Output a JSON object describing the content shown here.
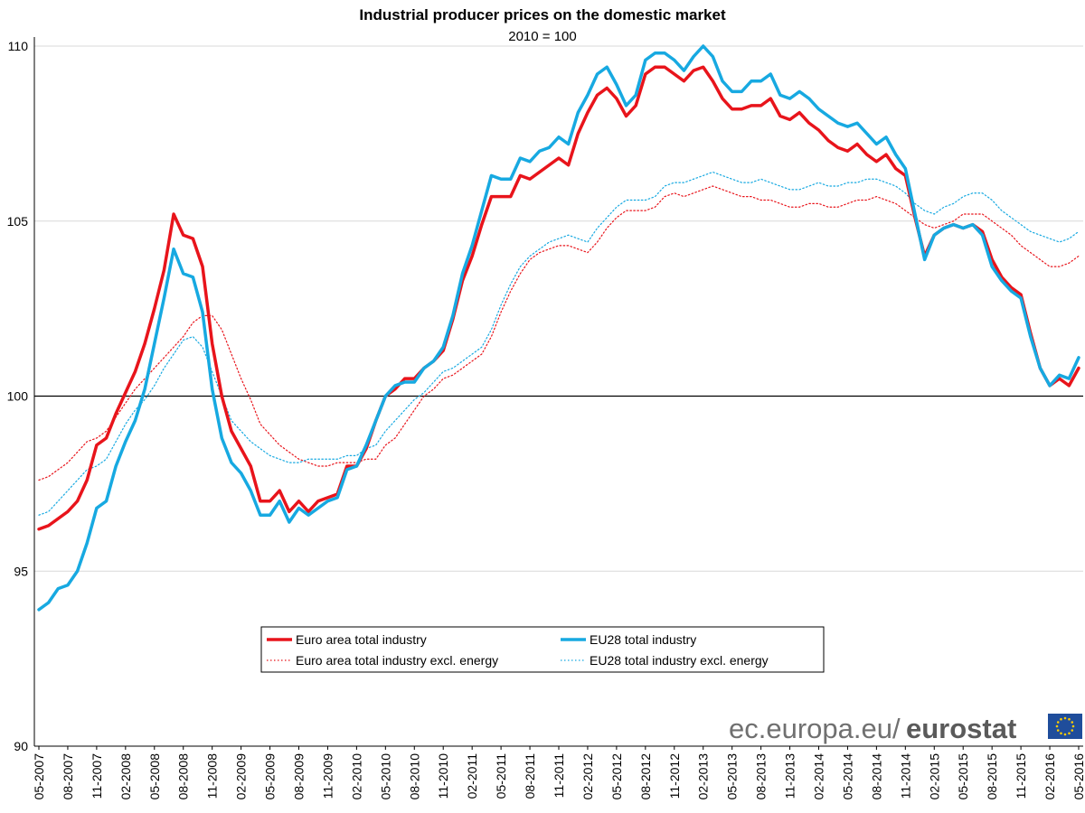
{
  "chart_data": {
    "type": "line",
    "title": "Industrial producer prices on the domestic market",
    "subtitle": "2010 = 100",
    "ylim": [
      90,
      110
    ],
    "yticks": [
      90,
      95,
      100,
      105,
      110
    ],
    "reference_line": 100,
    "grid": "horizontal",
    "legend_position": "bottom-center",
    "x_ticks": [
      "05-2007",
      "08-2007",
      "11-2007",
      "02-2008",
      "05-2008",
      "08-2008",
      "11-2008",
      "02-2009",
      "05-2009",
      "08-2009",
      "11-2009",
      "02-2010",
      "05-2010",
      "08-2010",
      "11-2010",
      "02-2011",
      "05-2011",
      "08-2011",
      "11-2011",
      "02-2012",
      "05-2012",
      "08-2012",
      "11-2012",
      "02-2013",
      "05-2013",
      "08-2013",
      "11-2013",
      "02-2014",
      "05-2014",
      "08-2014",
      "11-2014",
      "02-2015",
      "05-2015",
      "08-2015",
      "11-2015",
      "02-2016",
      "05-2016"
    ],
    "series": [
      {
        "name": "Euro area total industry",
        "color": "#e8141b",
        "style": "solid",
        "values": [
          96.2,
          96.3,
          96.5,
          96.7,
          97.0,
          97.6,
          98.6,
          98.8,
          99.5,
          100.1,
          100.7,
          101.5,
          102.5,
          103.6,
          105.2,
          104.6,
          104.5,
          103.7,
          101.5,
          100.0,
          99.0,
          98.5,
          98.0,
          97.0,
          97.0,
          97.3,
          96.7,
          97.0,
          96.7,
          97.0,
          97.1,
          97.2,
          98.0,
          98.0,
          98.5,
          99.3,
          100.0,
          100.2,
          100.5,
          100.5,
          100.8,
          101.0,
          101.3,
          102.2,
          103.3,
          104.0,
          104.9,
          105.7,
          105.7,
          105.7,
          106.3,
          106.2,
          106.4,
          106.6,
          106.8,
          106.6,
          107.5,
          108.1,
          108.6,
          108.8,
          108.5,
          108.0,
          108.3,
          109.2,
          109.4,
          109.4,
          109.2,
          109.0,
          109.3,
          109.4,
          109.0,
          108.5,
          108.2,
          108.2,
          108.3,
          108.3,
          108.5,
          108.0,
          107.9,
          108.1,
          107.8,
          107.6,
          107.3,
          107.1,
          107.0,
          107.2,
          106.9,
          106.7,
          106.9,
          106.5,
          106.3,
          105.1,
          104.0,
          104.6,
          104.8,
          104.9,
          104.8,
          104.9,
          104.7,
          103.9,
          103.4,
          103.1,
          102.9,
          101.8,
          100.8,
          100.3,
          100.5,
          100.3,
          100.8
        ]
      },
      {
        "name": "EU28 total industry",
        "color": "#17a9e1",
        "style": "solid",
        "values": [
          93.9,
          94.1,
          94.5,
          94.6,
          95.0,
          95.8,
          96.8,
          97.0,
          98.0,
          98.7,
          99.3,
          100.2,
          101.5,
          102.8,
          104.2,
          103.5,
          103.4,
          102.4,
          100.2,
          98.8,
          98.1,
          97.8,
          97.3,
          96.6,
          96.6,
          97.0,
          96.4,
          96.8,
          96.6,
          96.8,
          97.0,
          97.1,
          97.9,
          98.0,
          98.6,
          99.3,
          100.0,
          100.3,
          100.4,
          100.4,
          100.8,
          101.0,
          101.4,
          102.3,
          103.5,
          104.3,
          105.3,
          106.3,
          106.2,
          106.2,
          106.8,
          106.7,
          107.0,
          107.1,
          107.4,
          107.2,
          108.1,
          108.6,
          109.2,
          109.4,
          108.9,
          108.3,
          108.6,
          109.6,
          109.8,
          109.8,
          109.6,
          109.3,
          109.7,
          110.0,
          109.7,
          109.0,
          108.7,
          108.7,
          109.0,
          109.0,
          109.2,
          108.6,
          108.5,
          108.7,
          108.5,
          108.2,
          108.0,
          107.8,
          107.7,
          107.8,
          107.5,
          107.2,
          107.4,
          106.9,
          106.5,
          105.2,
          103.9,
          104.6,
          104.8,
          104.9,
          104.8,
          104.9,
          104.6,
          103.7,
          103.3,
          103.0,
          102.8,
          101.7,
          100.8,
          100.3,
          100.6,
          100.5,
          101.1
        ]
      },
      {
        "name": "Euro area total industry excl. energy",
        "color": "#e8141b",
        "style": "dotted",
        "values": [
          97.6,
          97.7,
          97.9,
          98.1,
          98.4,
          98.7,
          98.8,
          99.0,
          99.4,
          99.8,
          100.2,
          100.5,
          100.8,
          101.1,
          101.4,
          101.7,
          102.1,
          102.3,
          102.3,
          101.9,
          101.2,
          100.5,
          99.9,
          99.2,
          98.9,
          98.6,
          98.4,
          98.2,
          98.1,
          98.0,
          98.0,
          98.1,
          98.1,
          98.1,
          98.2,
          98.2,
          98.6,
          98.8,
          99.2,
          99.6,
          100.0,
          100.2,
          100.5,
          100.6,
          100.8,
          101.0,
          101.2,
          101.7,
          102.4,
          103.0,
          103.5,
          103.9,
          104.1,
          104.2,
          104.3,
          104.3,
          104.2,
          104.1,
          104.4,
          104.8,
          105.1,
          105.3,
          105.3,
          105.3,
          105.4,
          105.7,
          105.8,
          105.7,
          105.8,
          105.9,
          106.0,
          105.9,
          105.8,
          105.7,
          105.7,
          105.6,
          105.6,
          105.5,
          105.4,
          105.4,
          105.5,
          105.5,
          105.4,
          105.4,
          105.5,
          105.6,
          105.6,
          105.7,
          105.6,
          105.5,
          105.3,
          105.1,
          104.9,
          104.8,
          104.9,
          105.0,
          105.2,
          105.2,
          105.2,
          105.0,
          104.8,
          104.6,
          104.3,
          104.1,
          103.9,
          103.7,
          103.7,
          103.8,
          104.0
        ]
      },
      {
        "name": "EU28 total industry excl. energy",
        "color": "#17a9e1",
        "style": "dotted",
        "values": [
          96.6,
          96.7,
          97.0,
          97.3,
          97.6,
          97.9,
          98.0,
          98.2,
          98.7,
          99.2,
          99.6,
          99.9,
          100.3,
          100.8,
          101.2,
          101.6,
          101.7,
          101.4,
          100.7,
          100.0,
          99.3,
          99.0,
          98.7,
          98.5,
          98.3,
          98.2,
          98.1,
          98.1,
          98.2,
          98.2,
          98.2,
          98.2,
          98.3,
          98.3,
          98.5,
          98.6,
          99.0,
          99.3,
          99.6,
          99.9,
          100.1,
          100.4,
          100.7,
          100.8,
          101.0,
          101.2,
          101.4,
          101.9,
          102.6,
          103.2,
          103.7,
          104.0,
          104.2,
          104.4,
          104.5,
          104.6,
          104.5,
          104.4,
          104.8,
          105.1,
          105.4,
          105.6,
          105.6,
          105.6,
          105.7,
          106.0,
          106.1,
          106.1,
          106.2,
          106.3,
          106.4,
          106.3,
          106.2,
          106.1,
          106.1,
          106.2,
          106.1,
          106.0,
          105.9,
          105.9,
          106.0,
          106.1,
          106.0,
          106.0,
          106.1,
          106.1,
          106.2,
          106.2,
          106.1,
          106.0,
          105.8,
          105.5,
          105.3,
          105.2,
          105.4,
          105.5,
          105.7,
          105.8,
          105.8,
          105.6,
          105.3,
          105.1,
          104.9,
          104.7,
          104.6,
          104.5,
          104.4,
          104.5,
          104.7
        ]
      }
    ]
  },
  "branding": {
    "site_text": "ec.europa.eu/",
    "brand_text": "eurostat"
  },
  "colors": {
    "euro_area": "#e8141b",
    "eu28": "#17a9e1",
    "eu_flag_blue": "#1f4d9b",
    "eu_flag_star": "#ffcc00"
  }
}
